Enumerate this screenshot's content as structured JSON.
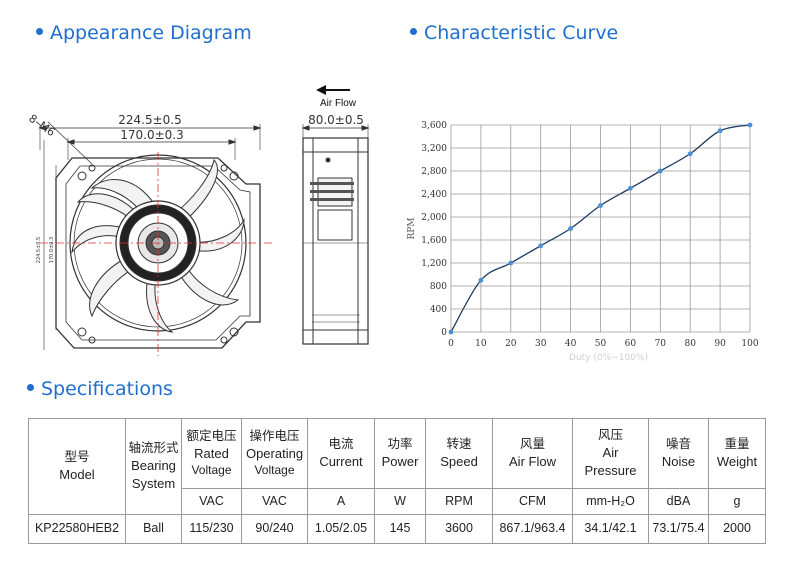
{
  "sections": {
    "appearance": "Appearance Diagram",
    "curve": "Characteristic Curve",
    "specs": "Specifications"
  },
  "diagram": {
    "outer_width": "224.5±0.5",
    "inner_width": "170.0±0.3",
    "hole_label": "8–M6",
    "side_width": "80.0±0.5",
    "airflow_label": "Air Flow",
    "vertical_outer": "224.5±0.5",
    "vertical_inner": "170.0±0.3"
  },
  "chart_data": {
    "type": "line",
    "title": "",
    "xlabel": "Duty (0%~100%)",
    "ylabel": "RPM",
    "x": [
      0,
      10,
      20,
      30,
      40,
      50,
      60,
      70,
      80,
      90,
      100
    ],
    "series": [
      {
        "values": [
          0,
          900,
          1200,
          1500,
          1800,
          2200,
          2500,
          2800,
          3100,
          3500,
          3600
        ]
      }
    ],
    "xlim": [
      0,
      100
    ],
    "ylim": [
      0,
      3600
    ],
    "xticks": [
      0,
      10,
      20,
      30,
      40,
      50,
      60,
      70,
      80,
      90,
      100
    ],
    "yticks": [
      "0",
      "400",
      "800",
      "1,200",
      "1,600",
      "2,000",
      "2,400",
      "2,800",
      "3,200",
      "3,600"
    ],
    "grid": true,
    "line_color": "#1f3a5f",
    "marker_color": "#4a90d9"
  },
  "specs": {
    "headers": [
      {
        "cn": "型号",
        "en1": "Model",
        "en2": ""
      },
      {
        "cn": "轴流形式",
        "en1": "Bearing",
        "en2": "System"
      },
      {
        "cn": "额定电压",
        "en1": "Rated",
        "en2": "Voltage"
      },
      {
        "cn": "操作电压",
        "en1": "Operating",
        "en2": "Voltage"
      },
      {
        "cn": "电流",
        "en1": "Current",
        "en2": ""
      },
      {
        "cn": "功率",
        "en1": "Power",
        "en2": ""
      },
      {
        "cn": "转速",
        "en1": "Speed",
        "en2": ""
      },
      {
        "cn": "风量",
        "en1": "Air Flow",
        "en2": ""
      },
      {
        "cn": "风压",
        "en1": "Air Pressure",
        "en2": ""
      },
      {
        "cn": "噪音",
        "en1": "Noise",
        "en2": ""
      },
      {
        "cn": "重量",
        "en1": "Weight",
        "en2": ""
      }
    ],
    "units": [
      "VAC",
      "VAC",
      "A",
      "W",
      "RPM",
      "CFM",
      "mm-H₂O",
      "dBA",
      "g"
    ],
    "row": [
      "KP22580HEB2",
      "Ball",
      "115/230",
      "90/240",
      "1.05/2.05",
      "145",
      "3600",
      "867.1/963.4",
      "34.1/42.1",
      "73.1/75.4",
      "2000"
    ]
  },
  "colors": {
    "accent": "#1f6fd1",
    "grid": "#9a9a9a",
    "centerline": "#d33"
  }
}
